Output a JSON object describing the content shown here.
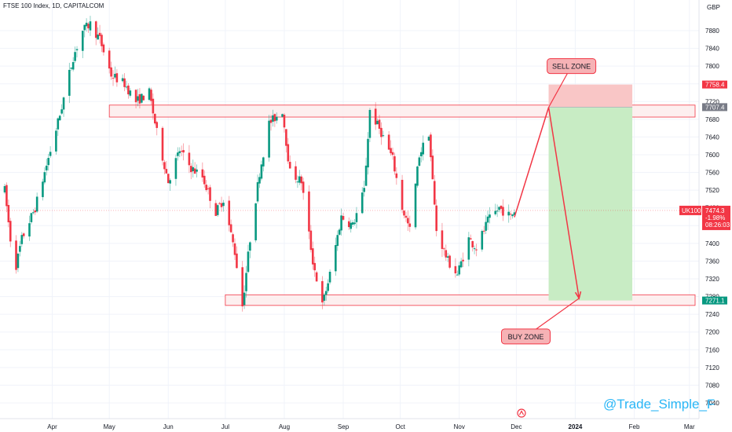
{
  "header": {
    "title": "FTSE 100 Index, 1D, CAPITALCOM",
    "currency": "GBP"
  },
  "watermark": "@Trade_Simple_F",
  "colors": {
    "up": "#089981",
    "down": "#f23645",
    "zone_fill": "#fdecec",
    "zone_border": "#f23645",
    "tp_fill": "#c8ecc4",
    "sl_fill": "#f9c6c6",
    "label_bg": "#f6b2b5",
    "arrow": "#f23645"
  },
  "chart_data": {
    "type": "candlestick",
    "title": "FTSE 100 Index, 1D, CAPITALCOM",
    "y_ticks": [
      7880,
      7840,
      7800,
      7760,
      7720,
      7680,
      7640,
      7600,
      7560,
      7520,
      7480,
      7440,
      7400,
      7360,
      7320,
      7280,
      7240,
      7200,
      7160,
      7120,
      7080,
      7040
    ],
    "x_ticks": [
      "Apr",
      "May",
      "Jun",
      "Jul",
      "Aug",
      "Sep",
      "Oct",
      "Nov",
      "Dec",
      "2024",
      "Feb",
      "Mar"
    ],
    "x_range": [
      "2023-03-07",
      "2024-03-04"
    ],
    "ylim": [
      7028,
      7915
    ],
    "grid": true,
    "price_labels": [
      {
        "text": "7758.4",
        "value": 7758.4,
        "color": "#f23645"
      },
      {
        "text": "7707.4",
        "value": 7707.4,
        "color": "#787b86"
      },
      {
        "text": "7271.1",
        "value": 7271.1,
        "color": "#089981"
      }
    ],
    "last_price": {
      "symbol": "UK100",
      "price": "7474.3",
      "change": "-1.98%",
      "countdown": "08:26:03",
      "value": 7474.3
    },
    "zones": [
      {
        "name": "sell-zone-band",
        "from": "2023-05-01",
        "to": "2024-03-04",
        "top": 7712,
        "bottom": 7685
      },
      {
        "name": "buy-zone-band",
        "from": "2023-07-01",
        "to": "2024-03-04",
        "top": 7284,
        "bottom": 7260
      }
    ],
    "position": {
      "start": "2023-12-18",
      "end": "2024-01-31",
      "entry": 7707.4,
      "stop": 7758.4,
      "target": 7271.1
    },
    "annotations": [
      {
        "text": "SELL ZONE",
        "label_date": "2023-12-30",
        "label_value": 7800,
        "point_date": "2023-12-18",
        "point_value": 7707
      },
      {
        "text": "BUY ZONE",
        "label_date": "2023-12-06",
        "label_value": 7190,
        "point_date": "2024-01-03",
        "point_value": 7276
      }
    ],
    "path": [
      {
        "date": "2023-11-30",
        "value": 7459
      },
      {
        "date": "2023-12-18",
        "value": 7707
      },
      {
        "date": "2024-01-03",
        "value": 7276
      }
    ],
    "keypoints": [
      [
        "2023-03-07",
        7520
      ],
      [
        "2023-03-10",
        7410
      ],
      [
        "2023-03-13",
        7350
      ],
      [
        "2023-03-16",
        7410
      ],
      [
        "2023-03-20",
        7450
      ],
      [
        "2023-03-23",
        7480
      ],
      [
        "2023-03-28",
        7560
      ],
      [
        "2023-04-05",
        7690
      ],
      [
        "2023-04-12",
        7820
      ],
      [
        "2023-04-17",
        7880
      ],
      [
        "2023-04-21",
        7895
      ],
      [
        "2023-04-26",
        7860
      ],
      [
        "2023-05-02",
        7780
      ],
      [
        "2023-05-09",
        7760
      ],
      [
        "2023-05-15",
        7720
      ],
      [
        "2023-05-22",
        7740
      ],
      [
        "2023-05-26",
        7650
      ],
      [
        "2023-06-01",
        7540
      ],
      [
        "2023-06-07",
        7610
      ],
      [
        "2023-06-13",
        7570
      ],
      [
        "2023-06-19",
        7550
      ],
      [
        "2023-06-26",
        7470
      ],
      [
        "2023-06-30",
        7500
      ],
      [
        "2023-07-06",
        7380
      ],
      [
        "2023-07-10",
        7260
      ],
      [
        "2023-07-14",
        7410
      ],
      [
        "2023-07-19",
        7560
      ],
      [
        "2023-07-24",
        7670
      ],
      [
        "2023-07-31",
        7700
      ],
      [
        "2023-08-04",
        7560
      ],
      [
        "2023-08-10",
        7540
      ],
      [
        "2023-08-16",
        7360
      ],
      [
        "2023-08-21",
        7260
      ],
      [
        "2023-08-25",
        7330
      ],
      [
        "2023-08-31",
        7460
      ],
      [
        "2023-09-06",
        7440
      ],
      [
        "2023-09-12",
        7520
      ],
      [
        "2023-09-15",
        7700
      ],
      [
        "2023-09-21",
        7650
      ],
      [
        "2023-09-27",
        7590
      ],
      [
        "2023-10-02",
        7480
      ],
      [
        "2023-10-06",
        7430
      ],
      [
        "2023-10-11",
        7600
      ],
      [
        "2023-10-16",
        7650
      ],
      [
        "2023-10-20",
        7430
      ],
      [
        "2023-10-26",
        7360
      ],
      [
        "2023-10-31",
        7330
      ],
      [
        "2023-11-06",
        7410
      ],
      [
        "2023-11-10",
        7390
      ],
      [
        "2023-11-16",
        7450
      ],
      [
        "2023-11-22",
        7480
      ],
      [
        "2023-11-28",
        7460
      ],
      [
        "2023-11-30",
        7474
      ]
    ]
  }
}
